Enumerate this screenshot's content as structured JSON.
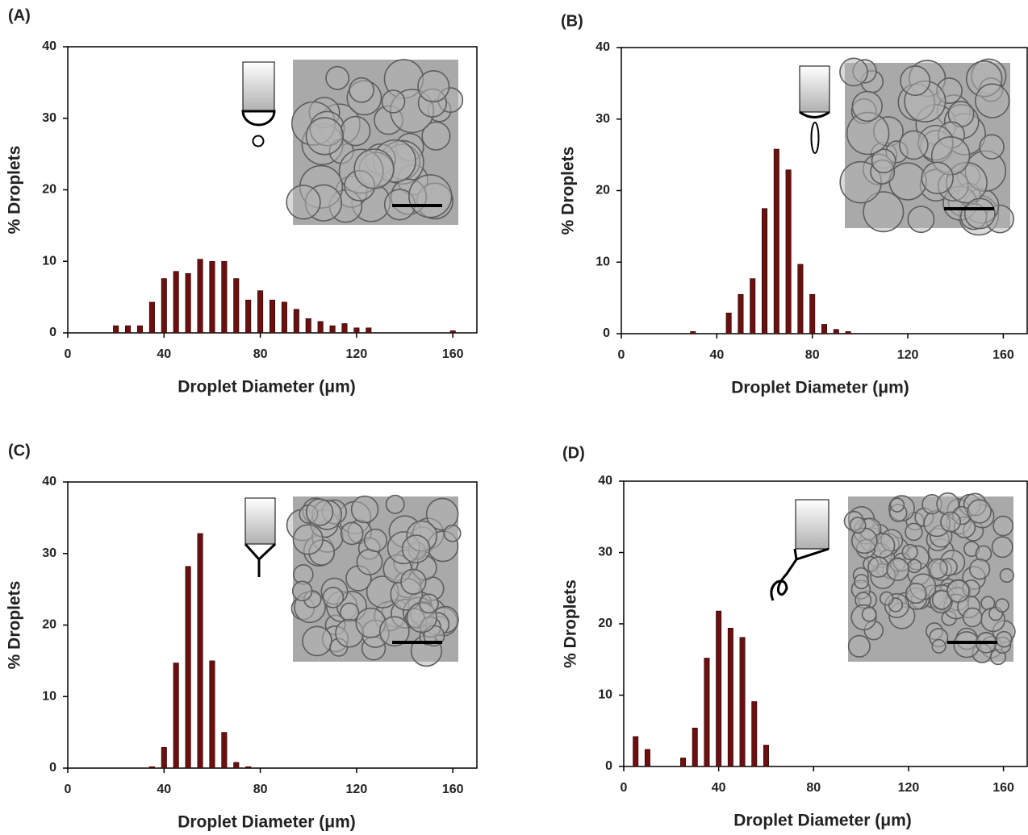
{
  "chart_data": [
    {
      "type": "bar",
      "title": "(A)",
      "x_label": "Droplet Diameter (μm)",
      "y_label": "% Droplets",
      "color": "#6b0f0f",
      "x": [
        20,
        25,
        30,
        35,
        40,
        45,
        50,
        55,
        60,
        65,
        70,
        75,
        80,
        85,
        90,
        95,
        100,
        105,
        110,
        115,
        120,
        125,
        160
      ],
      "values": [
        1,
        1,
        1,
        4.3,
        7.6,
        8.6,
        8.3,
        10.3,
        10,
        10,
        7.6,
        4.6,
        5.9,
        4.6,
        4.3,
        3.3,
        2,
        1.6,
        1,
        1.3,
        0.7,
        0.7,
        0.3
      ],
      "xlim": [
        0,
        170
      ],
      "xticks": [
        0,
        40,
        80,
        120,
        160
      ],
      "ylim": [
        0,
        40
      ],
      "yticks": [
        0,
        10,
        20,
        30,
        40
      ]
    },
    {
      "type": "bar",
      "title": "(B)",
      "x_label": "Droplet Diameter (μm)",
      "y_label": "% Droplets",
      "color": "#6b0f0f",
      "x": [
        30,
        45,
        50,
        55,
        60,
        65,
        70,
        75,
        80,
        85,
        90,
        95
      ],
      "values": [
        0.3,
        2.9,
        5.5,
        7.7,
        17.5,
        25.8,
        22.9,
        9.7,
        5.5,
        1.3,
        0.6,
        0.3
      ],
      "xlim": [
        0,
        170
      ],
      "xticks": [
        0,
        40,
        80,
        120,
        160
      ],
      "ylim": [
        0,
        40
      ],
      "yticks": [
        0,
        10,
        20,
        30,
        40
      ]
    },
    {
      "type": "bar",
      "title": "(C)",
      "x_label": "Droplet Diameter (μm)",
      "y_label": "% Droplets",
      "color": "#6b0f0f",
      "x": [
        35,
        40,
        45,
        50,
        55,
        60,
        65,
        70,
        75
      ],
      "values": [
        0.2,
        2.9,
        14.7,
        28.2,
        32.8,
        15.0,
        5.0,
        0.8,
        0.2
      ],
      "xlim": [
        0,
        170
      ],
      "xticks": [
        0,
        40,
        80,
        120,
        160
      ],
      "ylim": [
        0,
        40
      ],
      "yticks": [
        0,
        10,
        20,
        30,
        40
      ]
    },
    {
      "type": "bar",
      "title": "(D)",
      "x_label": "Droplet Diameter (μm)",
      "y_label": "% Droplets",
      "color": "#6b0f0f",
      "x": [
        5,
        10,
        25,
        30,
        35,
        40,
        45,
        50,
        55,
        60
      ],
      "values": [
        4.2,
        2.4,
        1.2,
        5.4,
        15.2,
        21.8,
        19.4,
        18.1,
        9.1,
        3.0
      ],
      "xlim": [
        0,
        170
      ],
      "xticks": [
        0,
        40,
        80,
        120,
        160
      ],
      "ylim": [
        0,
        40
      ],
      "yticks": [
        0,
        10,
        20,
        30,
        40
      ]
    }
  ]
}
